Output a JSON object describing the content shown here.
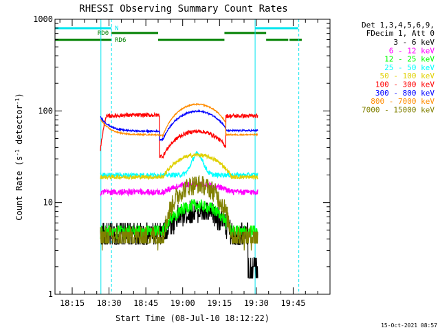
{
  "chart_data": {
    "type": "line",
    "title": "RHESSI Observing Summary Count Rates",
    "xlabel": "Start Time (08-Jul-10 18:12:22)",
    "ylabel_main": "Count Rate (s",
    "ylabel_sup1": "-1",
    "ylabel_mid": " detector",
    "ylabel_sup2": "-1",
    "ylabel_end": ")",
    "yscale": "log",
    "ylim": [
      1,
      1000
    ],
    "xlim_minutes": [
      1088,
      1200
    ],
    "y_ticks": [
      {
        "value": 1,
        "label": "1"
      },
      {
        "value": 10,
        "label": "10"
      },
      {
        "value": 100,
        "label": "100"
      },
      {
        "value": 1000,
        "label": "1000"
      }
    ],
    "x_ticks": [
      {
        "value": 1095,
        "label": "18:15"
      },
      {
        "value": 1110,
        "label": "18:30"
      },
      {
        "value": 1125,
        "label": "18:45"
      },
      {
        "value": 1140,
        "label": "19:00"
      },
      {
        "value": 1155,
        "label": "19:15"
      },
      {
        "value": 1170,
        "label": "19:30"
      },
      {
        "value": 1185,
        "label": "19:45"
      }
    ],
    "legend_header": [
      "Det 1,3,4,5,6,9,",
      "FDecim 1, Att 0"
    ],
    "series": [
      {
        "name": "3 - 6 keV",
        "color": "#000000"
      },
      {
        "name": "6 - 12 keV",
        "color": "#ff00ff"
      },
      {
        "name": "12 - 25 keV",
        "color": "#00ff00"
      },
      {
        "name": "25 - 50 keV",
        "color": "#00ffff"
      },
      {
        "name": "50 - 100 keV",
        "color": "#e0d000"
      },
      {
        "name": "100 - 300 keV",
        "color": "#ff0000"
      },
      {
        "name": "300 - 800 keV",
        "color": "#0000ff"
      },
      {
        "name": "800 - 7000 keV",
        "color": "#ff8c00"
      },
      {
        "name": "7000 - 15000 keV",
        "color": "#808000"
      }
    ],
    "night_bars": {
      "label": "N",
      "color": "#00e5ee",
      "intervals": [
        [
          1088,
          1111
        ],
        [
          1169.5,
          1187
        ]
      ]
    },
    "night_boundaries": [
      1106.7,
      1111,
      1169.5,
      1187.3
    ],
    "rd0_bar": {
      "label": "RD0",
      "color": "#008000",
      "intervals": [
        [
          1111,
          1130
        ],
        [
          1157,
          1174
        ]
      ]
    },
    "rd6_bar": {
      "label": "RD6",
      "color": "#008000",
      "intervals": [
        [
          1088,
          1111
        ],
        [
          1130,
          1157
        ],
        [
          1174,
          1183
        ],
        [
          1183.5,
          1188.5
        ]
      ]
    },
    "data_window": [
      1106.5,
      1170.6
    ],
    "timestamp": "15-Oct-2021 08:57"
  }
}
